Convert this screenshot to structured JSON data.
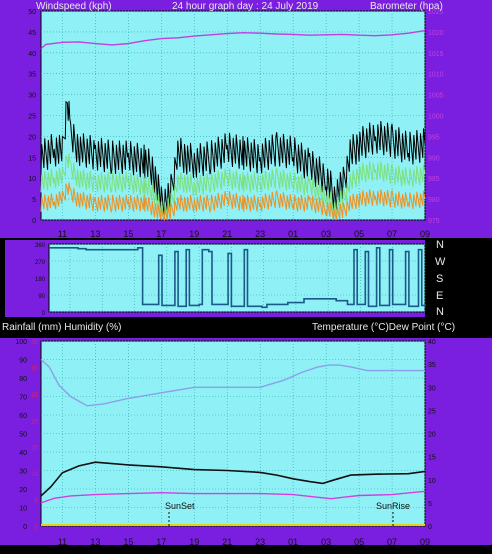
{
  "colors": {
    "background": "#000000",
    "frame": "#7a1fe0",
    "plot_bg": "#8ff0f5",
    "grid": "#2fa8b0",
    "baro": "#c040e0",
    "wind_black": "#000000",
    "wind_green": "#7de07d",
    "wind_orange": "#f09020",
    "dir": "#1a5a8a",
    "humidity": "#8aa0e8",
    "temperature": "#101010",
    "dewpoint": "#d040e0",
    "rain": "#e8d010",
    "red_ticks": "#ff2020",
    "text_light": "#e8e8e8",
    "text_dark": "#101010"
  },
  "labels": {
    "top_left": "Windspeed (kph)",
    "top_center": "24 hour graph day : 24 July 2019",
    "top_right": "Barometer (hpa)",
    "bottom_left": "Rainfall (mm)  Humidity (%)",
    "bottom_right": "Temperature (°C)Dew Point (°C)",
    "sunset": "SunSet",
    "sunrise": "SunRise",
    "compass": [
      "N",
      "W",
      "S",
      "E",
      "N"
    ]
  },
  "chart_data": [
    {
      "type": "line",
      "title": "24 hour graph day : 24 July 2019",
      "x_ticks": [
        "11",
        "13",
        "15",
        "17",
        "19",
        "21",
        "23",
        "01",
        "03",
        "05",
        "07",
        "09"
      ],
      "y_left_label": "Windspeed (kph)",
      "y_left_ticks": [
        "0",
        "5",
        "10",
        "15",
        "20",
        "25",
        "30",
        "35",
        "40",
        "45",
        "50"
      ],
      "y_left_lim": [
        0,
        50
      ],
      "y_right_label": "Barometer (hpa)",
      "y_right_ticks": [
        "975",
        "980",
        "985",
        "990",
        "995",
        "1000",
        "1005",
        "1010",
        "1015",
        "1020",
        "1025"
      ],
      "y_right_lim": [
        975,
        1025
      ],
      "grid": true,
      "series": [
        {
          "axis": "right",
          "x": [
            9.7,
            10,
            11,
            12,
            13,
            14,
            15,
            16,
            17,
            18,
            19,
            20,
            21,
            22,
            23,
            24,
            25,
            26,
            27,
            28,
            29,
            30,
            31,
            32,
            33
          ],
          "values": [
            1016.0,
            1017.0,
            1017.5,
            1017.6,
            1017.2,
            1016.9,
            1017.2,
            1017.9,
            1018.4,
            1018.6,
            1019.0,
            1019.3,
            1019.6,
            1019.8,
            1019.7,
            1019.5,
            1019.4,
            1019.2,
            1019.3,
            1019.4,
            1019.2,
            1019.1,
            1019.3,
            1019.7,
            1020.3
          ]
        },
        {
          "x": [
            9.7,
            10.5,
            11,
            11.3,
            11.5,
            12,
            13,
            14,
            15,
            16,
            16.5,
            17,
            17.5,
            18,
            18.5,
            19,
            20,
            21,
            22,
            23,
            24,
            25,
            26,
            27,
            27.5,
            28,
            28.5,
            29,
            30,
            31,
            32,
            33
          ],
          "values": [
            15,
            17,
            16,
            29,
            20,
            17,
            16,
            15,
            15,
            14,
            12,
            4,
            5,
            16,
            15,
            14,
            15,
            17,
            16,
            15,
            17,
            16,
            13,
            10,
            6,
            8,
            16,
            18,
            20,
            19,
            17,
            18
          ]
        },
        {
          "x": [
            9.7,
            10.5,
            11,
            11.3,
            11.5,
            12,
            13,
            14,
            15,
            16,
            16.5,
            17,
            17.5,
            18,
            18.5,
            19,
            20,
            21,
            22,
            23,
            24,
            25,
            26,
            27,
            27.5,
            28,
            28.5,
            29,
            30,
            31,
            32,
            33
          ],
          "values": [
            9,
            10,
            10,
            15,
            12,
            10,
            9,
            9,
            9,
            8,
            7,
            2,
            3,
            9,
            9,
            8,
            9,
            10,
            9,
            9,
            10,
            9,
            8,
            6,
            3,
            5,
            9,
            11,
            12,
            11,
            10,
            11
          ]
        },
        {
          "x": [
            9.7,
            10.5,
            11,
            11.3,
            11.5,
            12,
            13,
            14,
            15,
            16,
            16.5,
            17,
            17.5,
            18,
            18.5,
            19,
            20,
            21,
            22,
            23,
            24,
            25,
            26,
            27,
            27.5,
            28,
            28.5,
            29,
            30,
            31,
            32,
            33
          ],
          "values": [
            4,
            4.5,
            5,
            8,
            6,
            5,
            4,
            4,
            4,
            4,
            3,
            1,
            1.5,
            4,
            4,
            4,
            4,
            5,
            4,
            4,
            5,
            4,
            4,
            3,
            1.5,
            2,
            4,
            5,
            5.5,
            5,
            4.5,
            5
          ]
        }
      ]
    },
    {
      "type": "line",
      "x_ticks": [],
      "y_right_ticks": [
        "N",
        "W",
        "S",
        "E",
        "N"
      ],
      "y_lim": [
        0,
        360
      ],
      "series": [
        {
          "x": [
            9.7,
            11.5,
            12,
            15.2,
            15.5,
            16.5,
            16.7,
            17.5,
            17.7,
            18.2,
            18.4,
            19.0,
            19.2,
            19.6,
            19.8,
            20.8,
            21.0,
            21.8,
            22.0,
            22.9,
            23.2,
            24.5,
            25.5,
            27.5,
            28.2,
            28.6,
            28.8,
            29.3,
            29.5,
            30.0,
            30.2,
            30.8,
            31.0,
            31.8,
            32.0,
            32.6,
            32.8,
            33
          ],
          "values": [
            340,
            335,
            330,
            340,
            40,
            300,
            35,
            320,
            30,
            330,
            35,
            40,
            330,
            320,
            40,
            310,
            30,
            330,
            30,
            25,
            40,
            50,
            70,
            60,
            40,
            330,
            40,
            320,
            30,
            340,
            35,
            330,
            40,
            320,
            30,
            330,
            35,
            40
          ]
        }
      ]
    },
    {
      "type": "line",
      "y_left_label": "Rainfall (mm)  Humidity (%)",
      "y_left_ticks": [
        "0",
        "10",
        "20",
        "30",
        "40",
        "50",
        "60",
        "70",
        "80",
        "90",
        "100"
      ],
      "y_left_lim": [
        0,
        100
      ],
      "y_left_red_ticks": [
        "0",
        "5",
        "10",
        "15",
        "20",
        "25",
        "30",
        "35"
      ],
      "y_right_label": "Temperature (°C)Dew Point (°C)",
      "y_right_ticks": [
        "0",
        "5",
        "10",
        "15",
        "20",
        "25",
        "30",
        "35",
        "40"
      ],
      "y_right_lim": [
        0,
        40
      ],
      "x_ticks": [
        "11",
        "13",
        "15",
        "17",
        "19",
        "21",
        "23",
        "01",
        "03",
        "05",
        "07",
        "09"
      ],
      "annotations": [
        {
          "text": "SunSet",
          "x": 17.0
        },
        {
          "text": "SunRise",
          "x": 31.7
        }
      ],
      "series": [
        {
          "axis": "left",
          "x": [
            9.7,
            10.2,
            10.8,
            11.5,
            12.5,
            13.5,
            15,
            17,
            19,
            21,
            23,
            24.5,
            25.5,
            26.5,
            27.2,
            27.8,
            28.5,
            29.5,
            31,
            33
          ],
          "values": [
            90,
            86,
            76,
            70,
            65,
            66,
            69,
            72,
            75,
            75,
            75,
            79,
            83,
            86,
            87,
            87,
            86,
            84,
            84,
            84
          ]
        },
        {
          "axis": "right",
          "x": [
            9.7,
            10.3,
            11,
            12,
            13,
            14,
            15,
            17,
            19,
            21,
            23,
            24,
            25,
            26,
            26.8,
            27.5,
            28.5,
            30,
            32,
            33
          ],
          "values": [
            6.5,
            8.5,
            11.5,
            13.0,
            13.8,
            13.5,
            13.2,
            12.8,
            12.2,
            12.0,
            11.6,
            11.0,
            10.2,
            9.6,
            9.2,
            10.0,
            11.0,
            11.2,
            11.3,
            11.8
          ]
        },
        {
          "axis": "right",
          "x": [
            9.7,
            10.5,
            11.5,
            13,
            15,
            17,
            19,
            21,
            23,
            25,
            26.5,
            27.3,
            28,
            29,
            31,
            33
          ],
          "values": [
            5.0,
            6.0,
            6.5,
            6.8,
            7.0,
            7.2,
            7.0,
            7.0,
            7.0,
            6.8,
            6.2,
            5.9,
            6.2,
            6.6,
            6.8,
            7.5
          ]
        },
        {
          "axis": "left",
          "x": [
            9.7,
            33
          ],
          "values": [
            0,
            0
          ]
        }
      ]
    }
  ]
}
